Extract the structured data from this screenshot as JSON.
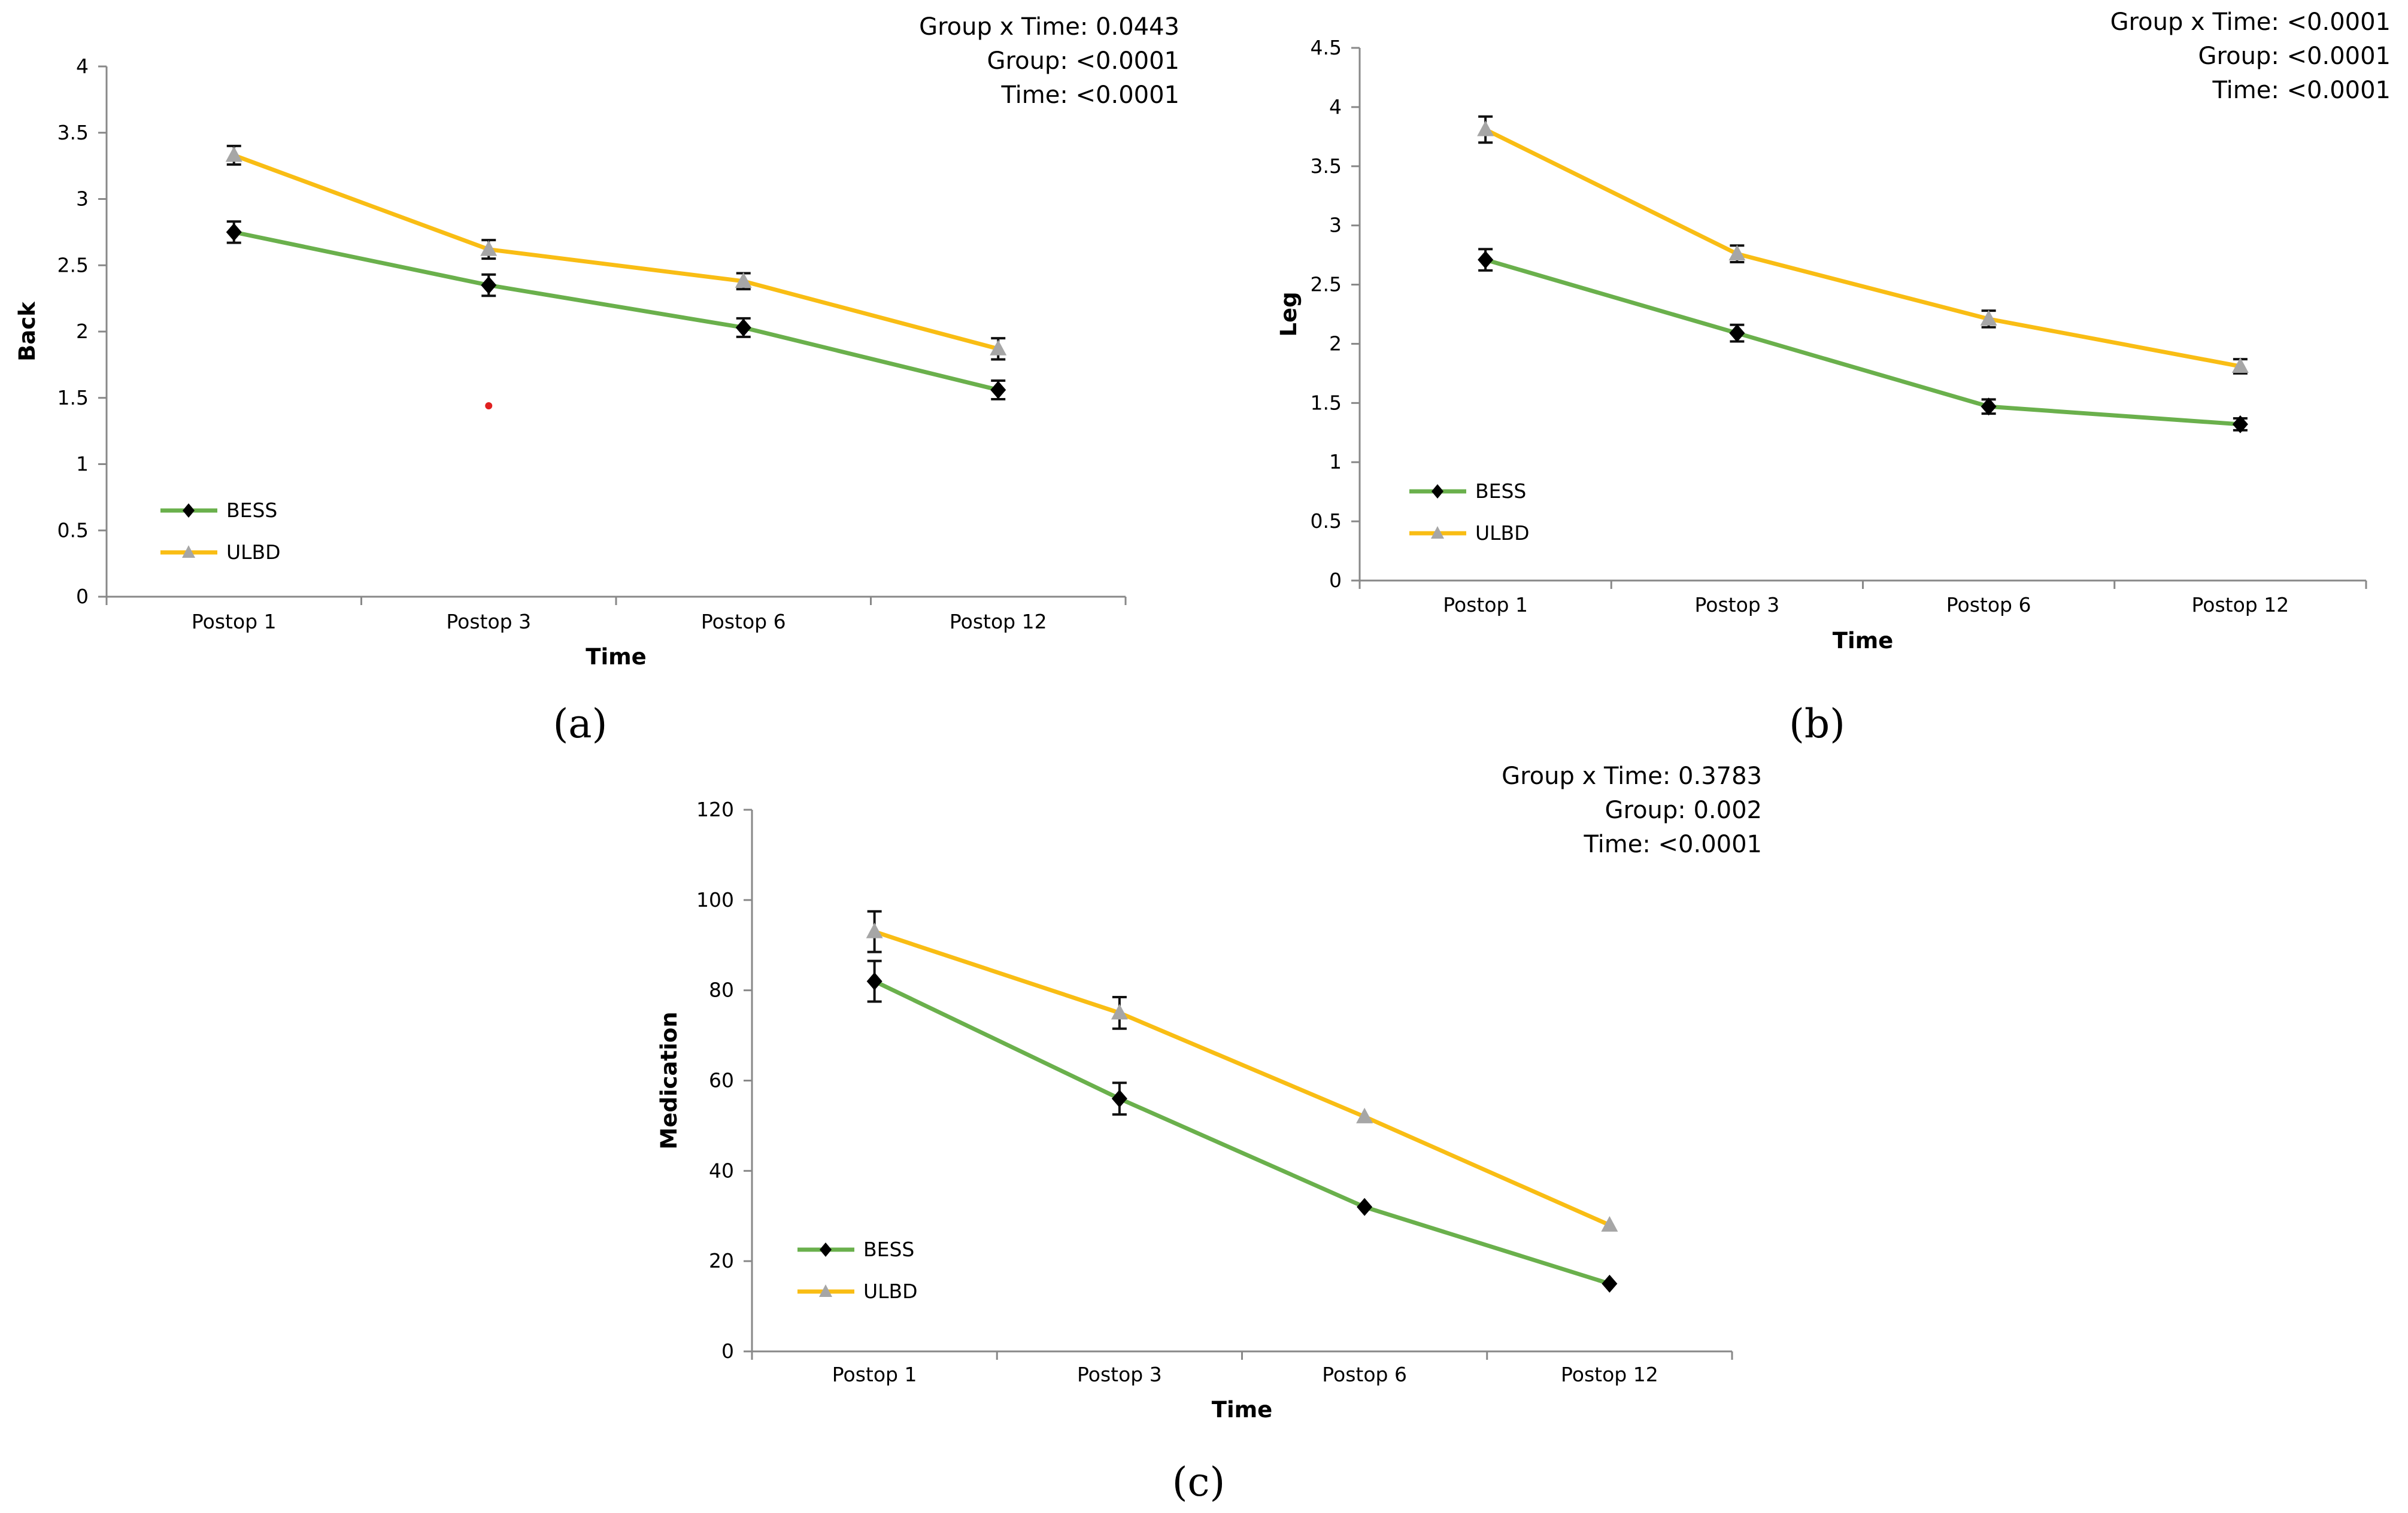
{
  "chart_data": [
    {
      "type": "line",
      "panel": "(a)",
      "xlabel": "Time",
      "ylabel": "Back",
      "categories": [
        "Postop 1",
        "Postop 3",
        "Postop 6",
        "Postop 12"
      ],
      "ylim": [
        0,
        4
      ],
      "yticks": [
        "0",
        "0.5",
        "1",
        "1.5",
        "2",
        "2.5",
        "3",
        "3.5",
        "4"
      ],
      "series": [
        {
          "name": "BESS",
          "color": "#6ab04c",
          "marker": "diamond",
          "values": [
            2.75,
            2.35,
            2.03,
            1.56
          ],
          "errors": [
            0.08,
            0.08,
            0.07,
            0.07
          ]
        },
        {
          "name": "ULBD",
          "color": "#f9bd14",
          "marker": "triangle",
          "values": [
            3.33,
            2.62,
            2.38,
            1.87
          ],
          "errors": [
            0.07,
            0.07,
            0.06,
            0.08
          ]
        }
      ],
      "stats": [
        "Group x Time: 0.0443",
        "Group: <0.0001",
        "Time: <0.0001"
      ],
      "legend_position": "bottom-left"
    },
    {
      "type": "line",
      "panel": "(b)",
      "xlabel": "Time",
      "ylabel": "Leg",
      "categories": [
        "Postop 1",
        "Postop 3",
        "Postop 6",
        "Postop 12"
      ],
      "ylim": [
        0,
        4.5
      ],
      "yticks": [
        "0",
        "0.5",
        "1",
        "1.5",
        "2",
        "2.5",
        "3",
        "3.5",
        "4",
        "4.5"
      ],
      "series": [
        {
          "name": "BESS",
          "color": "#6ab04c",
          "marker": "diamond",
          "values": [
            2.71,
            2.09,
            1.47,
            1.32
          ],
          "errors": [
            0.09,
            0.07,
            0.06,
            0.05
          ]
        },
        {
          "name": "ULBD",
          "color": "#f9bd14",
          "marker": "triangle",
          "values": [
            3.81,
            2.76,
            2.21,
            1.81
          ],
          "errors": [
            0.11,
            0.07,
            0.07,
            0.06
          ]
        }
      ],
      "stats": [
        "Group x Time: <0.0001",
        "Group: <0.0001",
        "Time: <0.0001"
      ],
      "legend_position": "bottom-left"
    },
    {
      "type": "line",
      "panel": "(c)",
      "xlabel": "Time",
      "ylabel": "Medication",
      "categories": [
        "Postop 1",
        "Postop 3",
        "Postop 6",
        "Postop 12"
      ],
      "ylim": [
        0,
        120
      ],
      "yticks": [
        "0",
        "20",
        "40",
        "60",
        "80",
        "100",
        "120"
      ],
      "series": [
        {
          "name": "BESS",
          "color": "#6ab04c",
          "marker": "diamond",
          "values": [
            82,
            56,
            32,
            15
          ],
          "errors": [
            4.5,
            3.5,
            0,
            0
          ]
        },
        {
          "name": "ULBD",
          "color": "#f9bd14",
          "marker": "triangle",
          "values": [
            93,
            75,
            52,
            28
          ],
          "errors": [
            4.5,
            3.5,
            0,
            0
          ]
        }
      ],
      "stats": [
        "Group x Time: 0.3783",
        "Group: 0.002",
        "Time: <0.0001"
      ],
      "legend_position": "bottom-left"
    }
  ],
  "captions": [
    "(a)",
    "(b)",
    "(c)"
  ]
}
